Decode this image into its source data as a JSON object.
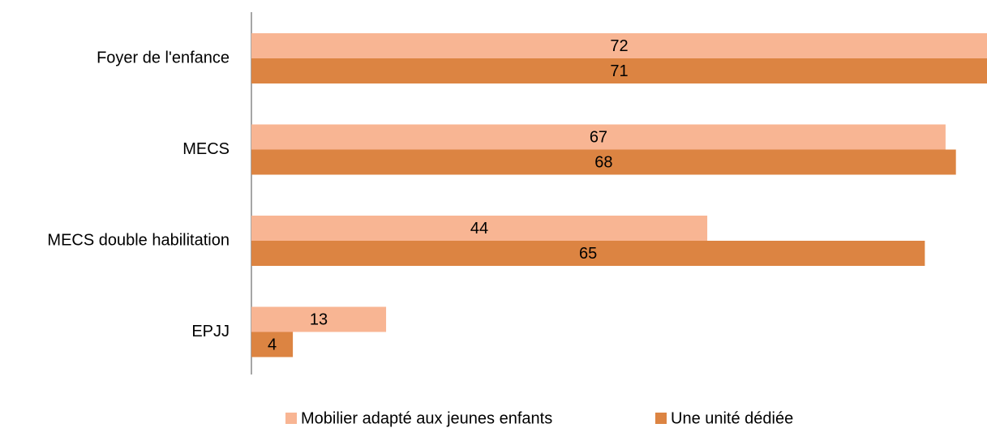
{
  "chart_data": {
    "type": "barh",
    "categories": [
      "Foyer de l'enfance",
      "MECS",
      "MECS double habilitation",
      "EPJJ"
    ],
    "series": [
      {
        "name": "Mobilier adapté aux jeunes enfants",
        "color": "#f8b593",
        "values": [
          72,
          67,
          44,
          13
        ]
      },
      {
        "name": "Une unité dédiée",
        "color": "#dc8442",
        "values": [
          71,
          68,
          65,
          4
        ]
      }
    ],
    "xlim": [
      0,
      71
    ],
    "legend": "bottom"
  }
}
